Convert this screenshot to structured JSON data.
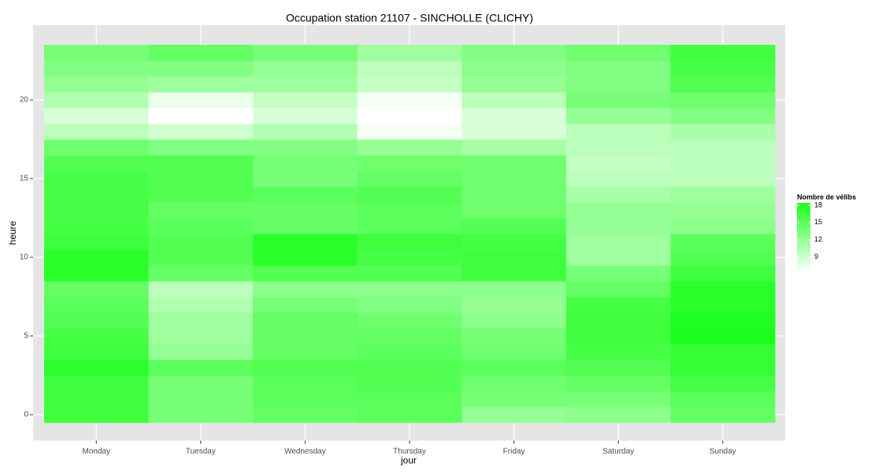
{
  "chart_data": {
    "type": "heatmap",
    "title": "Occupation station 21107 - SINCHOLLE (CLICHY)",
    "x_label": "jour",
    "y_label": "heure",
    "legend_title": "Nombre de vélibs",
    "categories": [
      "Monday",
      "Tuesday",
      "Wednesday",
      "Thursday",
      "Friday",
      "Saturday",
      "Sunday"
    ],
    "y": [
      0,
      1,
      2,
      3,
      4,
      5,
      6,
      7,
      8,
      9,
      10,
      11,
      12,
      13,
      14,
      15,
      16,
      17,
      18,
      19,
      20,
      21,
      22,
      23
    ],
    "values": [
      [
        16.5,
        16.5,
        16.5,
        17.5,
        16.5,
        16,
        15.5,
        15,
        14.5,
        17.5,
        17.5,
        16.5,
        16,
        16,
        16,
        16,
        15.5,
        14,
        10,
        8.5,
        10.5,
        12,
        13,
        13.5
      ],
      [
        13.5,
        13.5,
        13.5,
        15,
        12,
        11.5,
        11.5,
        10.5,
        10,
        14.5,
        15.5,
        15.5,
        15,
        14.5,
        15.5,
        15.5,
        15.5,
        13,
        9,
        6.5,
        7.5,
        11.5,
        13,
        14.5
      ],
      [
        14.5,
        15,
        15,
        15.5,
        14.5,
        14.5,
        14.5,
        13.5,
        12.5,
        15.5,
        17.5,
        17.5,
        14.5,
        14.5,
        15,
        13.5,
        13.5,
        13,
        10.5,
        8.5,
        9.5,
        11.5,
        12,
        13.5
      ],
      [
        15,
        15,
        15.5,
        15.5,
        15,
        14.5,
        14,
        13,
        12.5,
        15.5,
        16,
        16.5,
        15,
        15,
        15.5,
        14.5,
        14,
        12,
        7,
        6.5,
        7,
        9.5,
        10,
        11.5
      ],
      [
        12,
        13.5,
        14,
        15,
        14,
        13.5,
        12.5,
        12,
        12.5,
        16.5,
        16.5,
        16,
        15.5,
        14,
        14,
        14,
        14,
        11,
        8.5,
        8.5,
        10,
        12,
        12.5,
        13
      ],
      [
        12.5,
        13.5,
        14.5,
        15.5,
        16,
        16.5,
        16.5,
        16,
        14.5,
        13.5,
        11.5,
        11.5,
        12,
        12,
        11,
        10,
        9.5,
        10,
        10,
        12,
        13.5,
        13,
        13,
        14
      ],
      [
        14.5,
        15,
        16,
        17,
        17,
        18.4,
        18,
        17.5,
        17.5,
        16.5,
        15.5,
        15,
        12.5,
        12,
        11.5,
        10,
        10,
        10,
        11,
        13,
        14,
        15.5,
        16,
        16.5
      ]
    ],
    "ylim": [
      -1.65,
      24.75
    ],
    "yticks": [
      0,
      5,
      10,
      15,
      20
    ],
    "zlim": [
      6.5,
      18.4
    ],
    "legend_ticks": [
      9,
      12,
      15,
      18
    ],
    "low_color": "#ffffff",
    "high_color": "#1aff1a",
    "grid": true,
    "legend_position": "right"
  }
}
